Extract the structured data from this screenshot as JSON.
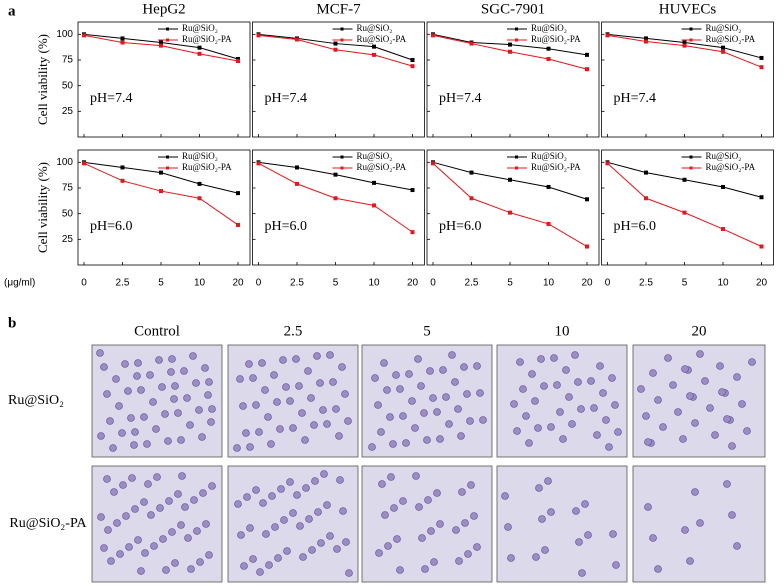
{
  "panel_labels": [
    "a",
    "b"
  ],
  "chart_data": [
    {
      "type": "line",
      "title": "HepG2",
      "ylabel": "Cell viability (%)",
      "annotation": "pH=7.4",
      "ylim": [
        0,
        112
      ],
      "yticks": [
        25,
        50,
        75,
        100
      ],
      "series": [
        {
          "name": "Ru@SiO₂",
          "color": "#000000",
          "values": [
            100,
            96,
            92,
            87,
            76
          ]
        },
        {
          "name": "Ru@SiO₂-PA",
          "color": "#e8151b",
          "values": [
            99,
            92,
            89,
            81,
            74
          ]
        }
      ]
    },
    {
      "type": "line",
      "title": "MCF-7",
      "annotation": "pH=7.4",
      "ylim": [
        0,
        112
      ],
      "yticks": [
        25,
        50,
        75,
        100
      ],
      "series": [
        {
          "name": "Ru@SiO₂",
          "color": "#000000",
          "values": [
            100,
            96,
            91,
            88,
            75
          ]
        },
        {
          "name": "Ru@SiO₂-PA",
          "color": "#e8151b",
          "values": [
            99,
            95,
            85,
            80,
            69
          ]
        }
      ]
    },
    {
      "type": "line",
      "title": "SGC-7901",
      "annotation": "pH=7.4",
      "ylim": [
        0,
        112
      ],
      "yticks": [
        25,
        50,
        75,
        100
      ],
      "series": [
        {
          "name": "Ru@SiO₂",
          "color": "#000000",
          "values": [
            100,
            92,
            90,
            86,
            80
          ]
        },
        {
          "name": "Ru@SiO₂-PA",
          "color": "#e8151b",
          "values": [
            99,
            91,
            83,
            76,
            66
          ]
        }
      ]
    },
    {
      "type": "line",
      "title": "HUVECs",
      "annotation": "pH=7.4",
      "ylim": [
        0,
        112
      ],
      "yticks": [
        25,
        50,
        75,
        100
      ],
      "series": [
        {
          "name": "Ru@SiO₂",
          "color": "#000000",
          "values": [
            100,
            96,
            92,
            87,
            77
          ]
        },
        {
          "name": "Ru@SiO₂-PA",
          "color": "#e8151b",
          "values": [
            99,
            93,
            89,
            83,
            68
          ]
        }
      ]
    },
    {
      "type": "line",
      "ylabel": "Cell viability (%)",
      "xlabel": "(μg/ml)",
      "annotation": "pH=6.0",
      "categories": [
        "0",
        "2.5",
        "5",
        "10",
        "20"
      ],
      "ylim": [
        0,
        112
      ],
      "yticks": [
        25,
        50,
        75,
        100
      ],
      "series": [
        {
          "name": "Ru@SiO₂",
          "color": "#000000",
          "values": [
            100,
            95,
            90,
            79,
            70
          ]
        },
        {
          "name": "Ru@SiO₂-PA",
          "color": "#e8151b",
          "values": [
            99,
            82,
            72,
            65,
            39
          ]
        }
      ]
    },
    {
      "type": "line",
      "annotation": "pH=6.0",
      "categories": [
        "0",
        "2.5",
        "5",
        "10",
        "20"
      ],
      "ylim": [
        0,
        112
      ],
      "yticks": [
        25,
        50,
        75,
        100
      ],
      "series": [
        {
          "name": "Ru@SiO₂",
          "color": "#000000",
          "values": [
            100,
            95,
            88,
            80,
            73
          ]
        },
        {
          "name": "Ru@SiO₂-PA",
          "color": "#e8151b",
          "values": [
            99,
            79,
            65,
            58,
            32
          ]
        }
      ]
    },
    {
      "type": "line",
      "annotation": "pH=6.0",
      "categories": [
        "0",
        "2.5",
        "5",
        "10",
        "20"
      ],
      "ylim": [
        0,
        112
      ],
      "yticks": [
        25,
        50,
        75,
        100
      ],
      "series": [
        {
          "name": "Ru@SiO₂",
          "color": "#000000",
          "values": [
            100,
            90,
            83,
            76,
            64
          ]
        },
        {
          "name": "Ru@SiO₂-PA",
          "color": "#e8151b",
          "values": [
            99,
            65,
            51,
            40,
            18
          ]
        }
      ]
    },
    {
      "type": "line",
      "annotation": "pH=6.0",
      "categories": [
        "0",
        "2.5",
        "5",
        "10",
        "20"
      ],
      "ylim": [
        0,
        112
      ],
      "yticks": [
        25,
        50,
        75,
        100
      ],
      "series": [
        {
          "name": "Ru@SiO₂",
          "color": "#000000",
          "values": [
            100,
            90,
            83,
            76,
            66
          ]
        },
        {
          "name": "Ru@SiO₂-PA",
          "color": "#e8151b",
          "values": [
            99,
            65,
            51,
            35,
            18
          ]
        }
      ]
    }
  ],
  "micrographs": {
    "columns": [
      "Control",
      "2.5",
      "5",
      "10",
      "20"
    ],
    "rows": [
      "Ru@SiO₂",
      "Ru@SiO₂-PA"
    ]
  }
}
